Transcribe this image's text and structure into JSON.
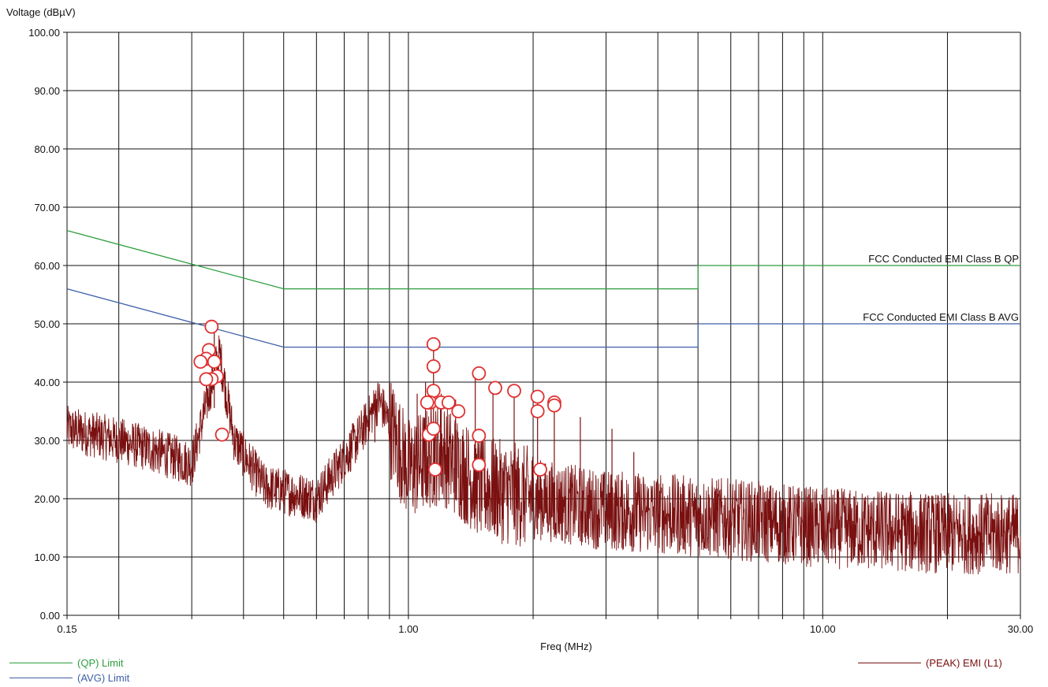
{
  "chart_data": {
    "type": "line",
    "ylabel": "Voltage (dBµV)",
    "xlabel": "Freq (MHz)",
    "x_scale": "log",
    "xlim": [
      0.15,
      30
    ],
    "ylim": [
      0,
      100
    ],
    "grid": true,
    "y_ticks": [
      "0.00",
      "10.00",
      "20.00",
      "30.00",
      "40.00",
      "50.00",
      "60.00",
      "70.00",
      "80.00",
      "90.00",
      "100.00"
    ],
    "x_tick_labels": [
      {
        "value": 0.15,
        "label": "0.15"
      },
      {
        "value": 1,
        "label": "1.00"
      },
      {
        "value": 10,
        "label": "10.00"
      },
      {
        "value": 30,
        "label": "30.00"
      }
    ],
    "limits": [
      {
        "name": "FCC Conducted EMI Class B QP",
        "legend": "(QP) Limit",
        "color": "#2e9e3e",
        "points": [
          [
            0.15,
            66
          ],
          [
            0.5,
            56
          ],
          [
            5,
            56
          ],
          [
            5,
            60
          ],
          [
            30,
            60
          ]
        ]
      },
      {
        "name": "FCC Conducted EMI Class B AVG",
        "legend": "(AVG) Limit",
        "color": "#3d5ea8",
        "points": [
          [
            0.15,
            56
          ],
          [
            0.5,
            46
          ],
          [
            5,
            46
          ],
          [
            5,
            50
          ],
          [
            30,
            50
          ]
        ]
      }
    ],
    "series": [
      {
        "name": "(PEAK) EMI (L1)",
        "color": "#7a1010",
        "envelope": [
          [
            0.15,
            32
          ],
          [
            0.2,
            30
          ],
          [
            0.25,
            28
          ],
          [
            0.3,
            26
          ],
          [
            0.33,
            38
          ],
          [
            0.35,
            45
          ],
          [
            0.38,
            30
          ],
          [
            0.45,
            22
          ],
          [
            0.6,
            20
          ],
          [
            0.75,
            30
          ],
          [
            0.85,
            37
          ],
          [
            1.0,
            25
          ],
          [
            1.2,
            28
          ],
          [
            1.5,
            22
          ],
          [
            2.0,
            20
          ],
          [
            3.0,
            18
          ],
          [
            5.0,
            17
          ],
          [
            10.0,
            15
          ],
          [
            20.0,
            14
          ],
          [
            30.0,
            14
          ]
        ],
        "spikes": [
          [
            0.34,
            49
          ],
          [
            0.83,
            38
          ],
          [
            0.95,
            35
          ],
          [
            1.05,
            38
          ],
          [
            1.1,
            40
          ],
          [
            1.15,
            46
          ],
          [
            1.2,
            38
          ],
          [
            1.3,
            37
          ],
          [
            1.45,
            41
          ],
          [
            1.6,
            39
          ],
          [
            1.8,
            38
          ],
          [
            2.05,
            37
          ],
          [
            2.25,
            36
          ],
          [
            2.6,
            34
          ],
          [
            3.1,
            32
          ],
          [
            3.5,
            28
          ]
        ]
      }
    ],
    "markers": [
      [
        0.335,
        49.5
      ],
      [
        0.33,
        45.5
      ],
      [
        0.325,
        44
      ],
      [
        0.34,
        43.5
      ],
      [
        0.315,
        43.5
      ],
      [
        0.345,
        41
      ],
      [
        0.335,
        40.5
      ],
      [
        0.325,
        40.5
      ],
      [
        0.355,
        31
      ],
      [
        1.15,
        46.5
      ],
      [
        1.15,
        42.7
      ],
      [
        1.15,
        38.5
      ],
      [
        1.13,
        36.5
      ],
      [
        1.11,
        36.5
      ],
      [
        1.2,
        36.5
      ],
      [
        1.25,
        36.5
      ],
      [
        1.32,
        35
      ],
      [
        1.12,
        31
      ],
      [
        1.15,
        32
      ],
      [
        1.16,
        25
      ],
      [
        1.48,
        41.5
      ],
      [
        1.62,
        39
      ],
      [
        1.8,
        38.5
      ],
      [
        1.48,
        30.8
      ],
      [
        1.48,
        25.8
      ],
      [
        2.05,
        37.5
      ],
      [
        2.05,
        35
      ],
      [
        2.25,
        36.5
      ],
      [
        2.25,
        36
      ],
      [
        2.08,
        25
      ]
    ]
  }
}
